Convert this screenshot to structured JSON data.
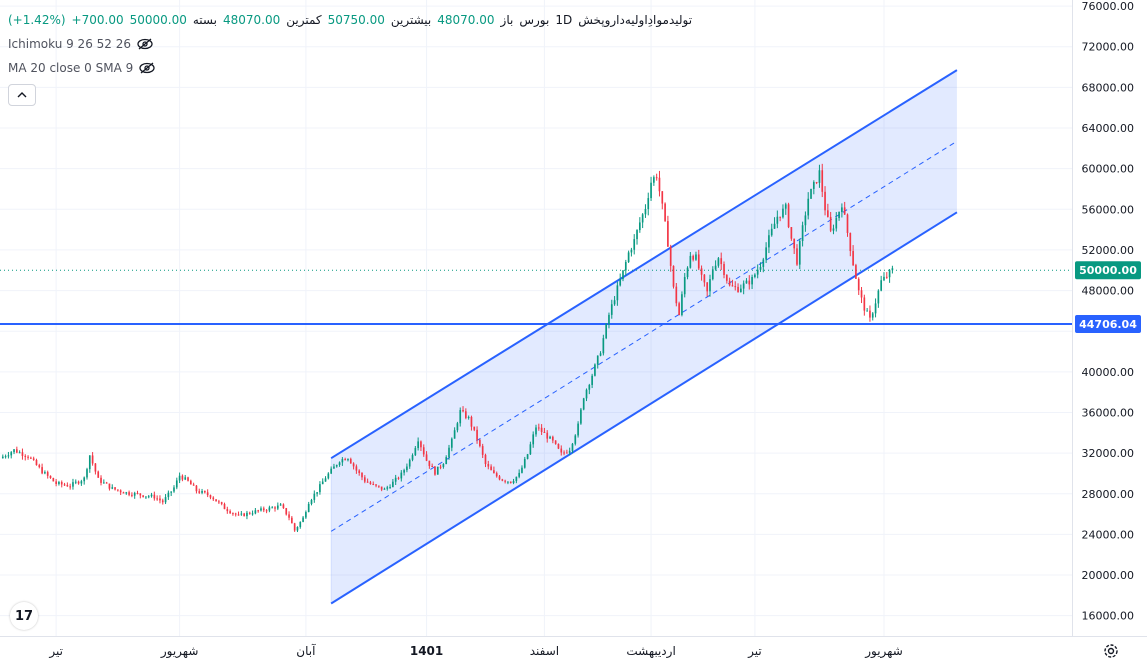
{
  "header": {
    "symbol": "تولیدموادِاولیه‌داروپخش",
    "interval": "1D",
    "exchange": "بورس",
    "open_label": "باز",
    "open_value": "48070.00",
    "high_label": "بیشترین",
    "high_value": "50750.00",
    "low_label": "کمترین",
    "low_value": "48070.00",
    "close_label": "بسته",
    "close_value": "50000.00",
    "change_value": "+700.00",
    "change_pct": "(+1.42%)"
  },
  "indicators": [
    {
      "name": "Ichimoku 9 26 52 26"
    },
    {
      "name": "MA 20 close 0 SMA 9"
    }
  ],
  "colors": {
    "up": "#089981",
    "down": "#f23645",
    "channel": "#2962ff",
    "channel_fill": "#2962ff22",
    "price_label_bg": "#089981",
    "level_label_bg": "#2962ff"
  },
  "icons": [
    "eye-off-icon",
    "chevron-up-icon",
    "tradingview-logo-icon",
    "gear-icon"
  ],
  "chart_data": {
    "type": "candlestick",
    "y_ticks": [
      16000,
      20000,
      24000,
      28000,
      32000,
      36000,
      40000,
      44000,
      48000,
      52000,
      56000,
      60000,
      64000,
      68000,
      72000,
      76000
    ],
    "y_tick_labels": [
      "16000.00",
      "20000.00",
      "24000.00",
      "28000.00",
      "32000.00",
      "36000.00",
      "40000.00",
      "",
      "48000.00",
      "52000.00",
      "56000.00",
      "60000.00",
      "64000.00",
      "68000.00",
      "72000.00",
      "76000.00"
    ],
    "ylim": [
      14000,
      76600
    ],
    "x_range": [
      0,
      382
    ],
    "x_ticks": [
      {
        "label": "تیر",
        "x": 20
      },
      {
        "label": "شهریور",
        "x": 64
      },
      {
        "label": "آبان",
        "x": 109
      },
      {
        "label": "1401",
        "x": 152
      },
      {
        "label": "اسفند",
        "x": 194
      },
      {
        "label": "اردیبهشت",
        "x": 232
      },
      {
        "label": "تیر",
        "x": 269
      },
      {
        "label": "شهریور",
        "x": 315
      }
    ],
    "last_price": 50000,
    "last_price_label": "50000.00",
    "horizontal_level": 44706.04,
    "horizontal_level_label": "44706.04",
    "channel": {
      "x_start": 118,
      "x_end": 341,
      "upper_start": 31500,
      "upper_end": 69700,
      "mid_start": 24300,
      "mid_end": 62700,
      "lower_start": 17200,
      "lower_end": 55700
    },
    "price_path": [
      [
        0,
        31500
      ],
      [
        5,
        32300
      ],
      [
        10,
        31700
      ],
      [
        15,
        30200
      ],
      [
        20,
        29000
      ],
      [
        25,
        28800
      ],
      [
        30,
        29500
      ],
      [
        32,
        31800
      ],
      [
        35,
        29400
      ],
      [
        40,
        28500
      ],
      [
        45,
        28100
      ],
      [
        50,
        27900
      ],
      [
        55,
        27700
      ],
      [
        58,
        27200
      ],
      [
        62,
        28600
      ],
      [
        64,
        29800
      ],
      [
        67,
        29200
      ],
      [
        70,
        28300
      ],
      [
        75,
        27800
      ],
      [
        80,
        26600
      ],
      [
        85,
        25800
      ],
      [
        90,
        26200
      ],
      [
        95,
        26500
      ],
      [
        100,
        26800
      ],
      [
        103,
        25700
      ],
      [
        105,
        24400
      ],
      [
        108,
        25600
      ],
      [
        110,
        27200
      ],
      [
        113,
        28300
      ],
      [
        116,
        29600
      ],
      [
        119,
        30600
      ],
      [
        121,
        31300
      ],
      [
        124,
        31600
      ],
      [
        127,
        30300
      ],
      [
        130,
        29300
      ],
      [
        133,
        28800
      ],
      [
        137,
        28400
      ],
      [
        140,
        29100
      ],
      [
        143,
        29900
      ],
      [
        146,
        31300
      ],
      [
        149,
        33400
      ],
      [
        152,
        31300
      ],
      [
        155,
        30100
      ],
      [
        158,
        31100
      ],
      [
        161,
        33200
      ],
      [
        164,
        36100
      ],
      [
        167,
        35400
      ],
      [
        170,
        33400
      ],
      [
        173,
        30900
      ],
      [
        176,
        29900
      ],
      [
        179,
        29400
      ],
      [
        182,
        29200
      ],
      [
        185,
        29900
      ],
      [
        188,
        31900
      ],
      [
        191,
        34600
      ],
      [
        194,
        33900
      ],
      [
        197,
        33100
      ],
      [
        200,
        31900
      ],
      [
        203,
        32400
      ],
      [
        206,
        34700
      ],
      [
        208,
        37600
      ],
      [
        211,
        39700
      ],
      [
        214,
        42100
      ],
      [
        217,
        45600
      ],
      [
        220,
        48200
      ],
      [
        222,
        49800
      ],
      [
        224,
        51700
      ],
      [
        226,
        52900
      ],
      [
        228,
        54700
      ],
      [
        230,
        56200
      ],
      [
        232,
        58700
      ],
      [
        234,
        59400
      ],
      [
        236,
        56200
      ],
      [
        238,
        52700
      ],
      [
        240,
        48200
      ],
      [
        242,
        45600
      ],
      [
        244,
        49300
      ],
      [
        246,
        51600
      ],
      [
        248,
        51200
      ],
      [
        250,
        49200
      ],
      [
        252,
        47800
      ],
      [
        254,
        50200
      ],
      [
        256,
        51300
      ],
      [
        258,
        49900
      ],
      [
        260,
        48400
      ],
      [
        263,
        48200
      ],
      [
        266,
        48700
      ],
      [
        268,
        49100
      ],
      [
        271,
        50600
      ],
      [
        274,
        53100
      ],
      [
        277,
        55300
      ],
      [
        280,
        56100
      ],
      [
        282,
        53100
      ],
      [
        284,
        50900
      ],
      [
        286,
        54100
      ],
      [
        288,
        57100
      ],
      [
        290,
        58300
      ],
      [
        292,
        59600
      ],
      [
        294,
        56100
      ],
      [
        296,
        53700
      ],
      [
        298,
        55100
      ],
      [
        300,
        56600
      ],
      [
        302,
        53700
      ],
      [
        304,
        50700
      ],
      [
        306,
        47900
      ],
      [
        308,
        46300
      ],
      [
        310,
        45100
      ],
      [
        312,
        46900
      ],
      [
        314,
        48900
      ],
      [
        316,
        49400
      ],
      [
        318,
        50000
      ]
    ]
  }
}
